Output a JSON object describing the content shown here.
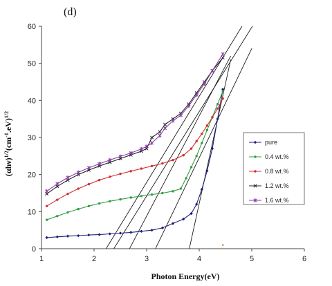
{
  "chart_data": {
    "type": "line",
    "panel_label": "(d)",
    "xlabel": "Photon Energy(eV)",
    "ylabel_parts": [
      "(αhν)",
      "1/2",
      "(cm",
      "-1",
      ".eV)",
      "1/2"
    ],
    "xlim": [
      1,
      6
    ],
    "ylim": [
      0,
      60
    ],
    "xticks": [
      "1",
      "2",
      "3",
      "4",
      "5",
      "6"
    ],
    "yticks": [
      "0",
      "10",
      "20",
      "30",
      "40",
      "50",
      "60"
    ],
    "legend_position": "right",
    "series": [
      {
        "name": "pure",
        "color": "#1f1f7a",
        "marker": "diamond",
        "points": [
          [
            1.1,
            3.0
          ],
          [
            1.3,
            3.2
          ],
          [
            1.5,
            3.4
          ],
          [
            1.7,
            3.5
          ],
          [
            1.9,
            3.7
          ],
          [
            2.1,
            3.8
          ],
          [
            2.3,
            4.0
          ],
          [
            2.5,
            4.2
          ],
          [
            2.7,
            4.4
          ],
          [
            2.9,
            4.7
          ],
          [
            3.1,
            5.0
          ],
          [
            3.3,
            5.6
          ],
          [
            3.5,
            6.8
          ],
          [
            3.7,
            8.0
          ],
          [
            3.85,
            9.5
          ],
          [
            3.95,
            12.0
          ],
          [
            4.05,
            16.0
          ],
          [
            4.15,
            21.0
          ],
          [
            4.25,
            27.0
          ],
          [
            4.35,
            35.0
          ],
          [
            4.45,
            43.0
          ]
        ]
      },
      {
        "name": "0.4 wt.%",
        "color": "#2e9e3e",
        "marker": "circle",
        "points": [
          [
            1.1,
            7.8
          ],
          [
            1.3,
            8.8
          ],
          [
            1.5,
            9.8
          ],
          [
            1.7,
            10.7
          ],
          [
            1.9,
            11.5
          ],
          [
            2.1,
            12.2
          ],
          [
            2.3,
            12.8
          ],
          [
            2.5,
            13.3
          ],
          [
            2.7,
            13.8
          ],
          [
            2.9,
            14.2
          ],
          [
            3.1,
            14.6
          ],
          [
            3.3,
            15.0
          ],
          [
            3.5,
            15.5
          ],
          [
            3.65,
            16.2
          ],
          [
            3.75,
            19.0
          ],
          [
            3.85,
            22.0
          ],
          [
            3.95,
            25.0
          ],
          [
            4.05,
            28.5
          ],
          [
            4.15,
            32.0
          ],
          [
            4.25,
            35.5
          ],
          [
            4.35,
            39.0
          ],
          [
            4.45,
            42.5
          ]
        ]
      },
      {
        "name": "0.8 wt.%",
        "color": "#d03030",
        "marker": "circle",
        "points": [
          [
            1.1,
            11.5
          ],
          [
            1.3,
            13.2
          ],
          [
            1.5,
            14.8
          ],
          [
            1.7,
            16.2
          ],
          [
            1.9,
            17.4
          ],
          [
            2.1,
            18.5
          ],
          [
            2.3,
            19.4
          ],
          [
            2.5,
            20.2
          ],
          [
            2.7,
            20.9
          ],
          [
            2.9,
            21.6
          ],
          [
            3.1,
            22.3
          ],
          [
            3.3,
            23.0
          ],
          [
            3.5,
            23.9
          ],
          [
            3.7,
            25.2
          ],
          [
            3.85,
            27.0
          ],
          [
            3.95,
            29.0
          ],
          [
            4.05,
            31.0
          ],
          [
            4.15,
            33.2
          ],
          [
            4.25,
            35.4
          ],
          [
            4.35,
            37.8
          ],
          [
            4.45,
            40.5
          ]
        ]
      },
      {
        "name": "1.2 wt.%",
        "color": "#222222",
        "marker": "x",
        "points": [
          [
            1.1,
            14.8
          ],
          [
            1.3,
            16.8
          ],
          [
            1.5,
            18.5
          ],
          [
            1.7,
            20.0
          ],
          [
            1.9,
            21.2
          ],
          [
            2.1,
            22.3
          ],
          [
            2.3,
            23.3
          ],
          [
            2.5,
            24.3
          ],
          [
            2.7,
            25.3
          ],
          [
            2.9,
            26.3
          ],
          [
            3.0,
            27.0
          ],
          [
            3.1,
            30.0
          ],
          [
            3.25,
            31.5
          ],
          [
            3.35,
            33.5
          ],
          [
            3.5,
            35.0
          ],
          [
            3.65,
            36.5
          ],
          [
            3.8,
            39.0
          ],
          [
            3.95,
            42.0
          ],
          [
            4.1,
            45.0
          ],
          [
            4.25,
            48.0
          ],
          [
            4.45,
            51.5
          ]
        ]
      },
      {
        "name": "1.6 wt.%",
        "color": "#8a3da8",
        "marker": "star",
        "points": [
          [
            1.1,
            15.5
          ],
          [
            1.3,
            17.5
          ],
          [
            1.5,
            19.2
          ],
          [
            1.7,
            20.6
          ],
          [
            1.9,
            21.8
          ],
          [
            2.1,
            22.9
          ],
          [
            2.3,
            23.9
          ],
          [
            2.5,
            24.9
          ],
          [
            2.7,
            25.8
          ],
          [
            2.9,
            26.9
          ],
          [
            3.0,
            27.6
          ],
          [
            3.1,
            28.5
          ],
          [
            3.25,
            30.5
          ],
          [
            3.35,
            32.5
          ],
          [
            3.5,
            34.5
          ],
          [
            3.65,
            36.0
          ],
          [
            3.8,
            38.5
          ],
          [
            3.95,
            41.5
          ],
          [
            4.1,
            44.5
          ],
          [
            4.25,
            48.0
          ],
          [
            4.45,
            52.5
          ]
        ]
      }
    ],
    "tangent_lines": [
      [
        [
          2.1,
          -3.0
        ],
        [
          4.9,
          62.0
        ]
      ],
      [
        [
          2.2,
          -4.0
        ],
        [
          5.1,
          62.0
        ]
      ],
      [
        [
          2.6,
          -2.0
        ],
        [
          4.6,
          52.0
        ]
      ],
      [
        [
          3.1,
          -2.0
        ],
        [
          5.0,
          54.0
        ]
      ],
      [
        [
          3.75,
          -4.0
        ],
        [
          4.6,
          51.0
        ]
      ]
    ],
    "stray_marker": {
      "x": 4.45,
      "y": 1.0,
      "color": "#d2a060"
    }
  }
}
